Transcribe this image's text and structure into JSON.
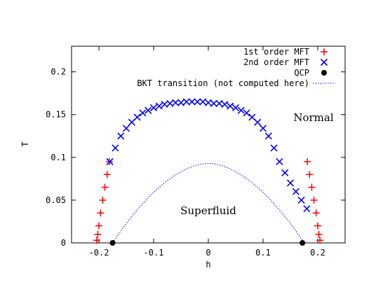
{
  "chart_data": {
    "type": "scatter",
    "title": "",
    "xlabel": "h",
    "ylabel": "T",
    "xlim": [
      -0.25,
      0.25
    ],
    "ylim": [
      0,
      0.23
    ],
    "xticks": [
      "-0.2",
      "-0.1",
      "0",
      "0.1",
      "0.2"
    ],
    "yticks": [
      "0",
      "0.05",
      "0.1",
      "0.15",
      "0.2"
    ],
    "grid": false,
    "legend_position": "top-right",
    "annotations": [
      {
        "text": "Normal",
        "x": 0.175,
        "y": 0.144
      },
      {
        "text": "Superfluid",
        "x": 0.0,
        "y": 0.035
      }
    ],
    "series": [
      {
        "name": "1st order MFT",
        "marker": "plus",
        "color": "#ff0000",
        "x": [
          -0.204,
          -0.202,
          -0.2,
          -0.197,
          -0.193,
          -0.189,
          -0.185,
          -0.181,
          0.181,
          0.185,
          0.189,
          0.193,
          0.197,
          0.2,
          0.202,
          0.204
        ],
        "y": [
          0.003,
          0.01,
          0.02,
          0.035,
          0.05,
          0.065,
          0.08,
          0.095,
          0.095,
          0.08,
          0.065,
          0.05,
          0.035,
          0.02,
          0.01,
          0.003
        ]
      },
      {
        "name": "2nd order MFT",
        "marker": "cross",
        "color": "#0000ff",
        "x": [
          -0.18,
          -0.17,
          -0.16,
          -0.15,
          -0.14,
          -0.13,
          -0.12,
          -0.11,
          -0.1,
          -0.09,
          -0.08,
          -0.07,
          -0.06,
          -0.05,
          -0.04,
          -0.03,
          -0.02,
          -0.01,
          0,
          0.01,
          0.02,
          0.03,
          0.04,
          0.05,
          0.06,
          0.07,
          0.08,
          0.09,
          0.1,
          0.11,
          0.12,
          0.13,
          0.14,
          0.15,
          0.16,
          0.17,
          0.18
        ],
        "y": [
          0.095,
          0.111,
          0.125,
          0.134,
          0.141,
          0.147,
          0.152,
          0.155,
          0.158,
          0.16,
          0.162,
          0.163,
          0.164,
          0.164,
          0.165,
          0.165,
          0.165,
          0.165,
          0.164,
          0.163,
          0.163,
          0.162,
          0.16,
          0.158,
          0.155,
          0.152,
          0.147,
          0.141,
          0.134,
          0.125,
          0.111,
          0.095,
          0.082,
          0.07,
          0.06,
          0.05,
          0.04
        ]
      },
      {
        "name": "QCP",
        "marker": "filled-circle",
        "color": "#000000",
        "x": [
          -0.175,
          0.172
        ],
        "y": [
          0.0,
          0.0
        ]
      },
      {
        "name": "BKT transition (not computed here)",
        "marker": "dotted-line",
        "color": "#0000ff",
        "curve": {
          "h0": 0.175,
          "tmax": 0.093,
          "exponent": 1.8
        }
      }
    ]
  }
}
